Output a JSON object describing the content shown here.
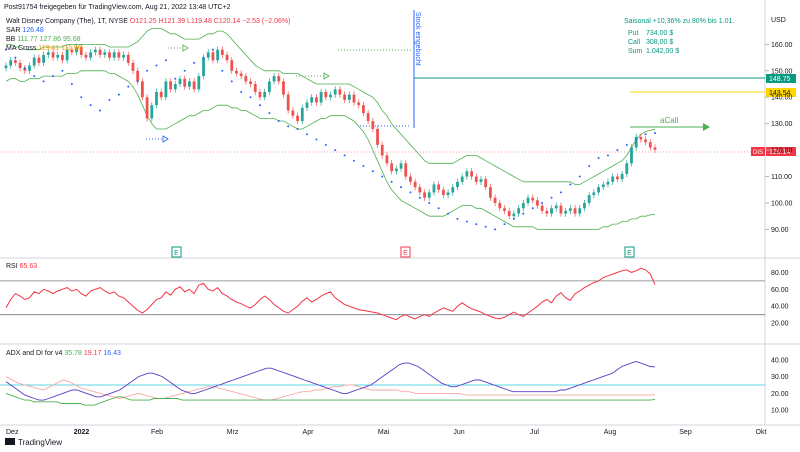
{
  "header": {
    "published": "Post91754 freigegeben für TradingView.com, Aug 21, 2022 13:48 UTC+2",
    "symbol": "Walt Disney Company (The), 1T, NYSE",
    "ohlc": "O121.25 H121.39 L119.48 C120.14 −2.53 (−2.06%)",
    "sar_label": "SAR",
    "sar_value": "126.48",
    "bb_label": "BB",
    "bb_values": "111.77  127.86  95.68",
    "ma_label": "MA Cross",
    "ma_values": "119.41  111.96"
  },
  "seasonal": {
    "title": "Saisonal +10,36% zu 80% bis 1.01.",
    "put_label": "Put",
    "put_value": "734,00 $",
    "call_label": "Call",
    "call_value": "308,00 $",
    "sum_label": "Sum",
    "sum_value": "1.042,00 $"
  },
  "annotations": {
    "vertical_label": "Stock eingebucht",
    "acall_label": "aCall",
    "earnings_marker": "E",
    "tradingview_logo": "TradingView"
  },
  "price_badges": {
    "level_148": "148.75",
    "level_143": "143.54",
    "symbol_tag": "DIS",
    "last": "120.14",
    "currency": "USD"
  },
  "rsi_panel": {
    "label": "RSI",
    "value": "65.63"
  },
  "adx_panel": {
    "label": "ADX and DI for v4",
    "adx": "35.78",
    "di_minus": "19.17",
    "di_plus": "16.43"
  },
  "colors": {
    "up": "#26a69a",
    "down": "#ef5350",
    "bb": "#4caf50",
    "sar": "#2962ff",
    "rsi": "#f23645",
    "level148": "#089981",
    "level143": "#ffd600"
  },
  "chart_data": [
    {
      "type": "candlestick",
      "title": "Walt Disney Company (The), 1T, NYSE",
      "x_ticks": [
        "Dez",
        "2022",
        "Feb",
        "Mrz",
        "Apr",
        "Mai",
        "Jun",
        "Jul",
        "Aug",
        "Sep",
        "Okt"
      ],
      "y_ticks": [
        90,
        100,
        110,
        120,
        130,
        140,
        150,
        160
      ],
      "ylim": [
        86,
        173
      ],
      "close": [
        152,
        154,
        153,
        151,
        150,
        152,
        155,
        153,
        156,
        157,
        155,
        156,
        154,
        158,
        157,
        159,
        156,
        155,
        157,
        158,
        156,
        157,
        155,
        157,
        155,
        156,
        153,
        150,
        146,
        140,
        132,
        137,
        142,
        140,
        146,
        143,
        145,
        147,
        144,
        146,
        143,
        148,
        155,
        157,
        154,
        158,
        156,
        154,
        150,
        149,
        148,
        146,
        145,
        142,
        140,
        142,
        146,
        148,
        146,
        141,
        135,
        133,
        131,
        136,
        138,
        140,
        138,
        142,
        140,
        141,
        143,
        141,
        139,
        141,
        138,
        137,
        134,
        131,
        128,
        122,
        118,
        115,
        112,
        113,
        115,
        110,
        108,
        106,
        104,
        102,
        104,
        107,
        105,
        103,
        104,
        106,
        108,
        110,
        112,
        110,
        108,
        109,
        106,
        102,
        100,
        98,
        97,
        95,
        96,
        98,
        100,
        102,
        101,
        99,
        97,
        96,
        98,
        99,
        96,
        97,
        98,
        96,
        98,
        100,
        103,
        104,
        106,
        107,
        108,
        110,
        109,
        111,
        115,
        121,
        125,
        124,
        123,
        121,
        120.14
      ],
      "bb_upper": [
        160,
        160,
        159,
        159,
        158,
        158,
        158,
        158,
        159,
        159,
        159,
        159,
        159,
        160,
        160,
        160,
        160,
        160,
        160,
        160,
        160,
        160,
        159,
        159,
        159,
        159,
        159,
        160,
        161,
        163,
        165,
        166,
        166,
        166,
        165,
        164,
        164,
        163,
        162,
        162,
        162,
        162,
        163,
        164,
        164,
        165,
        165,
        164,
        162,
        160,
        158,
        156,
        154,
        152,
        151,
        150,
        150,
        150,
        150,
        149,
        149,
        149,
        149,
        148,
        147,
        146,
        145,
        145,
        145,
        145,
        145,
        145,
        145,
        145,
        144,
        143,
        142,
        141,
        140,
        138,
        135,
        133,
        130,
        128,
        126,
        124,
        122,
        120,
        118,
        116,
        115,
        115,
        115,
        115,
        115,
        115,
        116,
        117,
        118,
        118,
        118,
        117,
        116,
        115,
        114,
        113,
        112,
        111,
        110,
        109,
        108,
        108,
        108,
        108,
        108,
        108,
        108,
        108,
        108,
        108,
        108,
        107,
        107,
        108,
        109,
        110,
        111,
        112,
        113,
        114,
        115,
        116,
        118,
        121,
        124,
        126,
        127,
        127.5,
        127.86
      ],
      "bb_lower": [
        146,
        147,
        147,
        146,
        146,
        147,
        147,
        147,
        148,
        148,
        148,
        148,
        148,
        149,
        149,
        149,
        150,
        150,
        150,
        150,
        150,
        150,
        149,
        149,
        148,
        147,
        146,
        144,
        141,
        137,
        133,
        130,
        128,
        128,
        128,
        129,
        130,
        131,
        132,
        133,
        133,
        134,
        135,
        135,
        136,
        137,
        137,
        137,
        136,
        136,
        135,
        135,
        134,
        133,
        132,
        132,
        132,
        132,
        131,
        131,
        130,
        129,
        128,
        128,
        129,
        130,
        131,
        132,
        132,
        133,
        133,
        133,
        133,
        132,
        131,
        129,
        127,
        124,
        120,
        116,
        112,
        108,
        105,
        103,
        101,
        100,
        99,
        98,
        97,
        96,
        95,
        95,
        95,
        95,
        96,
        97,
        98,
        99,
        99,
        99,
        98,
        98,
        97,
        96,
        95,
        94,
        93,
        92,
        91,
        91,
        91,
        91,
        91,
        90,
        90,
        90,
        90,
        90,
        90,
        90,
        90,
        90,
        90,
        90,
        90,
        90,
        90,
        91,
        91,
        92,
        92,
        93,
        93,
        94,
        94,
        95,
        95,
        95.5,
        95.68
      ],
      "sar_markers": [
        158,
        155,
        151,
        148,
        146,
        148,
        150,
        145,
        140,
        137,
        135,
        139,
        141,
        144,
        146,
        150,
        152,
        154,
        147,
        150,
        153,
        155,
        158,
        150,
        146,
        142,
        140,
        137,
        134,
        131,
        129,
        128,
        126,
        124,
        122,
        120,
        118,
        116,
        114,
        112,
        110,
        108,
        106,
        104,
        102,
        100,
        98,
        96,
        94,
        93,
        92,
        91,
        90,
        92,
        94,
        96,
        98,
        100,
        102,
        104,
        107,
        110,
        114,
        117,
        118,
        120,
        122,
        124,
        126,
        126.48
      ]
    },
    {
      "type": "line",
      "name": "RSI",
      "y_ticks": [
        20,
        40,
        60,
        80
      ],
      "ylim": [
        0,
        90
      ],
      "guides": [
        70,
        30
      ],
      "values": [
        38,
        48,
        55,
        52,
        48,
        50,
        57,
        55,
        60,
        58,
        55,
        58,
        60,
        62,
        58,
        60,
        55,
        52,
        58,
        60,
        62,
        58,
        55,
        57,
        52,
        50,
        45,
        40,
        35,
        32,
        36,
        42,
        48,
        50,
        57,
        53,
        60,
        63,
        57,
        60,
        55,
        65,
        67,
        60,
        58,
        62,
        55,
        52,
        48,
        45,
        43,
        40,
        38,
        42,
        48,
        52,
        48,
        42,
        38,
        34,
        32,
        36,
        40,
        46,
        50,
        45,
        48,
        52,
        55,
        57,
        50,
        46,
        42,
        40,
        38,
        36,
        35,
        34,
        33,
        32,
        30,
        28,
        26,
        24,
        28,
        30,
        27,
        25,
        28,
        30,
        28,
        32,
        35,
        38,
        36,
        34,
        40,
        44,
        40,
        37,
        35,
        33,
        30,
        28,
        26,
        25,
        27,
        30,
        33,
        30,
        28,
        32,
        36,
        40,
        45,
        48,
        44,
        52,
        56,
        50,
        47,
        55,
        58,
        62,
        65,
        68,
        70,
        74,
        76,
        78,
        80,
        82,
        83,
        80,
        82,
        85,
        83,
        78,
        65.63
      ]
    },
    {
      "type": "line",
      "name": "ADX and DI for v4",
      "y_ticks": [
        10,
        20,
        30,
        40
      ],
      "ylim": [
        3,
        47
      ],
      "guides": [
        25
      ],
      "adx": [
        27,
        25,
        23,
        21,
        19,
        18,
        17,
        16,
        16,
        17,
        18,
        19,
        20,
        21,
        22,
        22,
        21,
        20,
        19,
        18,
        18,
        19,
        20,
        21,
        22,
        24,
        26,
        28,
        30,
        31,
        32,
        32,
        31,
        30,
        28,
        26,
        24,
        22,
        21,
        20,
        20,
        21,
        22,
        23,
        24,
        25,
        26,
        27,
        28,
        29,
        30,
        31,
        32,
        33,
        34,
        35,
        35,
        34,
        33,
        32,
        31,
        30,
        29,
        28,
        27,
        26,
        25,
        24,
        23,
        22,
        21,
        20,
        20,
        21,
        22,
        23,
        24,
        25,
        27,
        29,
        31,
        33,
        35,
        37,
        38,
        38,
        37,
        36,
        34,
        32,
        30,
        28,
        26,
        25,
        24,
        24,
        25,
        26,
        27,
        28,
        28,
        27,
        26,
        25,
        24,
        23,
        22,
        21,
        21,
        21,
        21,
        21,
        21,
        21,
        21,
        21,
        21,
        22,
        22,
        23,
        24,
        25,
        26,
        27,
        28,
        29,
        30,
        31,
        32,
        34,
        36,
        37,
        38,
        39,
        38,
        37,
        36,
        35.78
      ],
      "di_minus": [
        30,
        28,
        26,
        25,
        24,
        23,
        22,
        24,
        26,
        28,
        27,
        25,
        23,
        22,
        21,
        20,
        19,
        18,
        17,
        18,
        19,
        20,
        19,
        18,
        17,
        17,
        18,
        19,
        20,
        21,
        22,
        23,
        24,
        24,
        23,
        22,
        21,
        20,
        19,
        18,
        17,
        16,
        16,
        17,
        18,
        19,
        20,
        21,
        21,
        22,
        22,
        23,
        24,
        24,
        25,
        25,
        24,
        23,
        22,
        22,
        22,
        22,
        22,
        21,
        21,
        20,
        20,
        20,
        20,
        20,
        20,
        20,
        20,
        19,
        19,
        19,
        19,
        19,
        19,
        19,
        19,
        19,
        19,
        19,
        19,
        19,
        19,
        19,
        19,
        19,
        19,
        19,
        19,
        19,
        19,
        19,
        19,
        19,
        19,
        19,
        19,
        19,
        19,
        19.17
      ],
      "di_plus": [
        20,
        19,
        18,
        17,
        16,
        16,
        15,
        15,
        15,
        15,
        15,
        15,
        14,
        14,
        14,
        14,
        14,
        13,
        13,
        13,
        14,
        15,
        16,
        17,
        18,
        18,
        17,
        16,
        16,
        16,
        16,
        16,
        17,
        17,
        17,
        17,
        17,
        17,
        16,
        16,
        16,
        16,
        16,
        16,
        16,
        16,
        16,
        16,
        16,
        16,
        16,
        16,
        16,
        16,
        16,
        16,
        16,
        16,
        16,
        16,
        16,
        16,
        16,
        16,
        16,
        16,
        16,
        16,
        16,
        16,
        16,
        16,
        16,
        16,
        16,
        16,
        16,
        16,
        16,
        16,
        16,
        16,
        16,
        16,
        16,
        16,
        16,
        16,
        16,
        16,
        16,
        16,
        16,
        16,
        16,
        16,
        16,
        16,
        16,
        16,
        16,
        16,
        16,
        16,
        16,
        16,
        16,
        16,
        16,
        16,
        16,
        16,
        16,
        16,
        16,
        16,
        16,
        16,
        16,
        16,
        16,
        16,
        16,
        16,
        16,
        16,
        16,
        16,
        16,
        16,
        16,
        16,
        16,
        16,
        16,
        16,
        16,
        16,
        16,
        16,
        16.43
      ]
    }
  ]
}
